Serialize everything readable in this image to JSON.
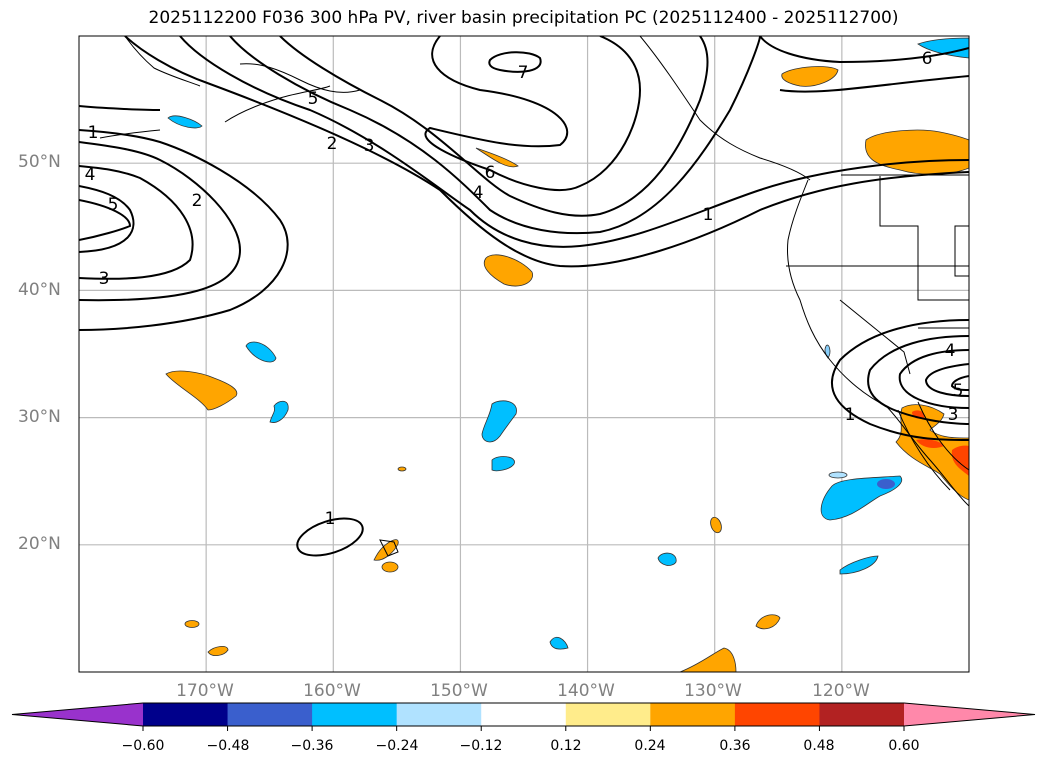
{
  "title": "2025112200 F036 300 hPa PV, river basin precipitation PC (2025112400 - 2025112700)",
  "map": {
    "projection": "PlateCarree",
    "extent": {
      "lon_min": -180,
      "lon_max": -110,
      "lat_min": 10,
      "lat_max": 60
    },
    "lat_ticks": [
      {
        "value": 50,
        "label": "50°N"
      },
      {
        "value": 40,
        "label": "40°N"
      },
      {
        "value": 30,
        "label": "30°N"
      },
      {
        "value": 20,
        "label": "20°N"
      }
    ],
    "lon_ticks": [
      {
        "value": -170,
        "label": "170°W"
      },
      {
        "value": -160,
        "label": "160°W"
      },
      {
        "value": -150,
        "label": "150°W"
      },
      {
        "value": -140,
        "label": "140°W"
      },
      {
        "value": -130,
        "label": "130°W"
      },
      {
        "value": -120,
        "label": "120°W"
      }
    ],
    "contour_field": "300 hPa PV",
    "contour_labels": [
      "1",
      "2",
      "3",
      "4",
      "5",
      "6",
      "7",
      "1",
      "2",
      "3",
      "4",
      "5",
      "6",
      "1",
      "3",
      "4",
      "5",
      "1"
    ],
    "fill_field": "river basin precipitation PC"
  },
  "colorbar": {
    "levels": [
      "−0.60",
      "−0.48",
      "−0.36",
      "−0.24",
      "−0.12",
      "0.12",
      "0.24",
      "0.36",
      "0.48",
      "0.60"
    ],
    "colors": [
      "#9932CC",
      "#00008B",
      "#3A5FCD",
      "#00BFFF",
      "#B0E2FF",
      "#FFFFFF",
      "#FFEC8B",
      "#FFA500",
      "#FF4500",
      "#B22222",
      "#FF88AA"
    ],
    "extend": "both"
  },
  "chart_data": {
    "type": "heatmap",
    "title": "2025112200 F036 300 hPa PV, river basin precipitation PC (2025112400 - 2025112700)",
    "xlabel": "",
    "ylabel": "",
    "xlim": [
      -180,
      -110
    ],
    "ylim": [
      10,
      60
    ],
    "x_ticks": [
      "170°W",
      "160°W",
      "150°W",
      "140°W",
      "130°W",
      "120°W"
    ],
    "y_ticks": [
      "50°N",
      "40°N",
      "30°N",
      "20°N"
    ],
    "grid": true,
    "contours": {
      "variable": "300 hPa PV",
      "levels": [
        1,
        2,
        3,
        4,
        5,
        6,
        7
      ]
    },
    "filled": {
      "variable": "precipitation PC",
      "bounds": [
        -0.6,
        -0.48,
        -0.36,
        -0.24,
        -0.12,
        0.12,
        0.24,
        0.36,
        0.48,
        0.6
      ]
    },
    "legend": "colorbar-bottom"
  }
}
